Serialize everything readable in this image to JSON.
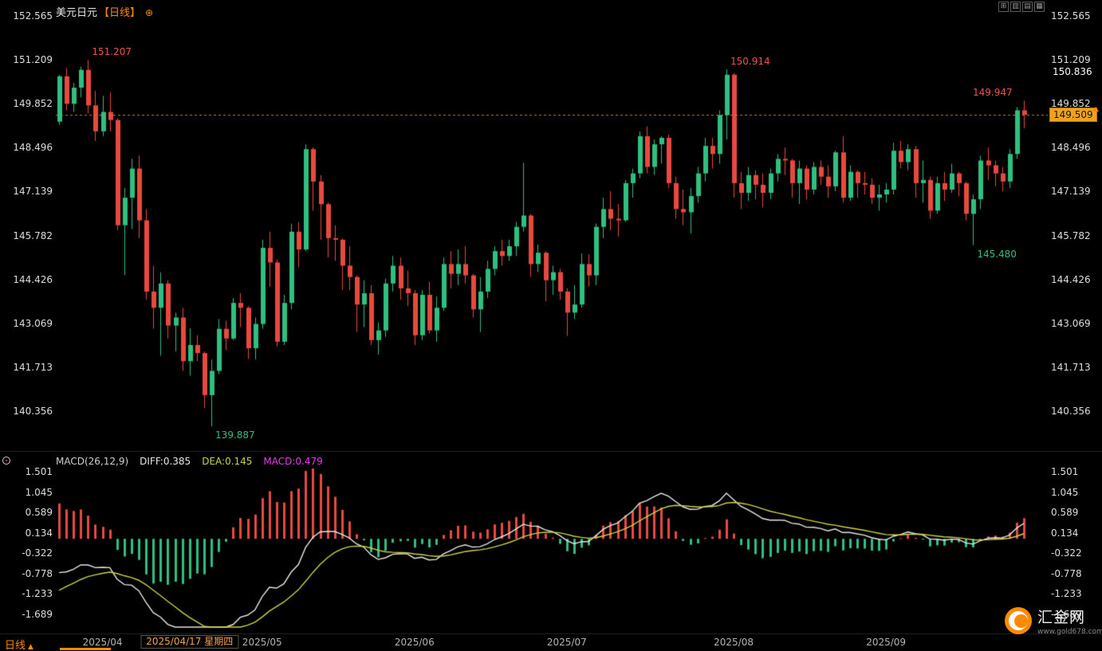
{
  "header": {
    "symbol": "美元日元",
    "period_tag": "【日线】",
    "settings_icon": "⊕",
    "toolbar": {
      "grid_layout_icon": "⊞",
      "candlestick_icon": "▥",
      "bar_chart_icon": "▤",
      "line_chart_icon": "▦"
    }
  },
  "price_axis": {
    "max": 152.565,
    "min": 140.356,
    "labels": [
      "152.565",
      "151.209",
      "149.852",
      "148.496",
      "147.139",
      "145.782",
      "144.426",
      "143.069",
      "141.713",
      "140.356"
    ]
  },
  "right_axis": {
    "session_high_label": "150.836",
    "last_price_label": "149.509"
  },
  "last_price": 149.509,
  "annotations": [
    {
      "text": "151.207",
      "date": "03/28",
      "vpos": "above",
      "side": "right",
      "color": "#f0524a"
    },
    {
      "text": "150.914",
      "date": "07/31",
      "vpos": "above",
      "side": "right",
      "color": "#f0524a"
    },
    {
      "text": "149.947",
      "date": "09/26",
      "vpos": "above",
      "side": "left",
      "color": "#f0524a"
    },
    {
      "text": "145.480",
      "date": "09/17",
      "vpos": "below",
      "side": "right",
      "color": "#2fbf80"
    },
    {
      "text": "139.887",
      "date": "04/22",
      "vpos": "below",
      "side": "right",
      "color": "#2fbf80"
    }
  ],
  "macd": {
    "title": "MACD(26,12,9)",
    "diff_label": "DIFF:0.385",
    "dea_label": "DEA:0.145",
    "macd_label": "MACD:0.479",
    "diff": 0.385,
    "dea": 0.145,
    "macd": 0.479,
    "max": 1.501,
    "min": -1.689,
    "labels": [
      "1.501",
      "1.045",
      "0.589",
      "0.134",
      "-0.322",
      "-0.778",
      "-1.233",
      "-1.689"
    ]
  },
  "time_axis": {
    "months": [
      {
        "label": "2025/04",
        "month": "04"
      },
      {
        "label": "2025/05",
        "month": "05"
      },
      {
        "label": "2025/06",
        "month": "06"
      },
      {
        "label": "2025/07",
        "month": "07"
      },
      {
        "label": "2025/08",
        "month": "08"
      },
      {
        "label": "2025/09",
        "month": "09"
      }
    ],
    "crosshair_date": "2025/04/17 星期四",
    "crosshair_anchor": "04/17"
  },
  "footer": {
    "period_label": "日线",
    "period_arrow": "▲",
    "logo_text": "汇金网",
    "logo_site": "www.gold678.com"
  },
  "colors": {
    "up": "#2fbf80",
    "down": "#e8493f",
    "accent": "#ff8a00",
    "diff_line": "#e6e6e6",
    "dea_line": "#cdd243",
    "macd_value": "#e53ae5",
    "last_price_line": "#c8791e"
  },
  "chart_data": {
    "type": "candlestick",
    "title": "美元日元 日线 (USD/JPY Daily)",
    "ylabel": "Price",
    "ylim": [
      140.356,
      152.565
    ],
    "year": 2025,
    "marked_points": {
      "high_start": 151.207,
      "low_april": 139.887,
      "high_august": 150.914,
      "low_september": 145.48,
      "recent_high": 149.947,
      "last_close": 149.509
    },
    "indicator": {
      "name": "MACD",
      "params": [
        26,
        12,
        9
      ],
      "diff": 0.385,
      "dea": 0.145,
      "macd": 0.479,
      "axis_range": [
        -1.689,
        1.501
      ]
    },
    "ohlc_format": [
      "date",
      "open",
      "high",
      "low",
      "close"
    ],
    "candles": [
      [
        "03/24",
        149.3,
        150.75,
        149.2,
        150.7
      ],
      [
        "03/25",
        150.7,
        150.95,
        149.65,
        149.85
      ],
      [
        "03/26",
        149.85,
        150.5,
        149.6,
        150.35
      ],
      [
        "03/27",
        150.35,
        151.0,
        150.05,
        150.9
      ],
      [
        "03/28",
        150.9,
        151.207,
        149.55,
        149.8
      ],
      [
        "03/31",
        149.8,
        150.25,
        148.7,
        149.0
      ],
      [
        "04/01",
        149.0,
        150.1,
        148.85,
        149.6
      ],
      [
        "04/02",
        149.6,
        150.2,
        149.0,
        149.35
      ],
      [
        "04/03",
        149.35,
        149.4,
        145.95,
        146.1
      ],
      [
        "04/04",
        146.1,
        147.25,
        144.56,
        146.95
      ],
      [
        "04/07",
        146.95,
        148.15,
        145.98,
        147.85
      ],
      [
        "04/08",
        147.85,
        148.25,
        145.7,
        146.25
      ],
      [
        "04/09",
        146.25,
        146.6,
        143.8,
        144.05
      ],
      [
        "04/10",
        144.05,
        144.85,
        142.9,
        143.55
      ],
      [
        "04/11",
        143.55,
        144.65,
        142.07,
        144.3
      ],
      [
        "04/14",
        144.3,
        144.4,
        142.6,
        143.0
      ],
      [
        "04/15",
        143.0,
        143.4,
        142.2,
        143.25
      ],
      [
        "04/16",
        143.25,
        143.55,
        141.61,
        141.9
      ],
      [
        "04/17",
        141.9,
        142.92,
        141.45,
        142.4
      ],
      [
        "04/18",
        142.4,
        142.7,
        141.9,
        142.15
      ],
      [
        "04/21",
        142.15,
        142.2,
        140.45,
        140.85
      ],
      [
        "04/22",
        140.85,
        141.95,
        139.887,
        141.6
      ],
      [
        "04/23",
        141.6,
        143.2,
        141.5,
        142.9
      ],
      [
        "04/24",
        142.9,
        143.15,
        142.25,
        142.6
      ],
      [
        "04/25",
        142.6,
        143.85,
        142.55,
        143.7
      ],
      [
        "04/28",
        143.7,
        144.0,
        142.95,
        143.55
      ],
      [
        "04/29",
        143.55,
        143.6,
        141.97,
        142.3
      ],
      [
        "04/30",
        142.3,
        143.25,
        141.95,
        143.05
      ],
      [
        "05/01",
        143.05,
        145.65,
        142.9,
        145.4
      ],
      [
        "05/02",
        145.4,
        145.9,
        144.2,
        144.95
      ],
      [
        "05/06",
        144.95,
        145.05,
        142.35,
        142.5
      ],
      [
        "05/07",
        142.5,
        143.95,
        142.4,
        143.7
      ],
      [
        "05/08",
        143.7,
        146.15,
        143.5,
        145.9
      ],
      [
        "05/09",
        145.9,
        146.2,
        144.8,
        145.35
      ],
      [
        "05/12",
        145.35,
        148.6,
        145.3,
        148.45
      ],
      [
        "05/13",
        148.45,
        148.5,
        146.55,
        147.45
      ],
      [
        "05/14",
        147.45,
        147.65,
        145.65,
        146.75
      ],
      [
        "05/15",
        146.75,
        146.8,
        145.1,
        145.7
      ],
      [
        "05/16",
        145.7,
        146.1,
        145.0,
        145.65
      ],
      [
        "05/19",
        145.65,
        145.7,
        144.1,
        144.85
      ],
      [
        "05/20",
        144.85,
        145.45,
        144.1,
        144.5
      ],
      [
        "05/21",
        144.5,
        144.55,
        142.8,
        143.65
      ],
      [
        "05/22",
        143.65,
        144.4,
        142.95,
        144.0
      ],
      [
        "05/23",
        144.0,
        144.25,
        142.4,
        142.55
      ],
      [
        "05/26",
        142.55,
        143.1,
        142.1,
        142.85
      ],
      [
        "05/27",
        142.85,
        144.45,
        142.65,
        144.3
      ],
      [
        "05/28",
        144.3,
        145.15,
        144.05,
        144.85
      ],
      [
        "05/29",
        144.85,
        145.1,
        143.8,
        144.15
      ],
      [
        "05/30",
        144.15,
        144.7,
        143.6,
        144.0
      ],
      [
        "06/02",
        144.0,
        144.1,
        142.4,
        142.7
      ],
      [
        "06/03",
        142.7,
        144.1,
        142.55,
        143.95
      ],
      [
        "06/04",
        143.95,
        144.35,
        142.75,
        142.85
      ],
      [
        "06/05",
        142.85,
        143.9,
        142.5,
        143.55
      ],
      [
        "06/06",
        143.55,
        145.1,
        143.45,
        144.9
      ],
      [
        "06/09",
        144.9,
        145.3,
        144.15,
        144.6
      ],
      [
        "06/10",
        144.6,
        145.35,
        144.25,
        144.9
      ],
      [
        "06/11",
        144.9,
        145.45,
        144.3,
        144.55
      ],
      [
        "06/12",
        144.55,
        144.6,
        143.25,
        143.5
      ],
      [
        "06/13",
        143.5,
        144.5,
        142.8,
        144.05
      ],
      [
        "06/16",
        144.05,
        145.0,
        143.85,
        144.75
      ],
      [
        "06/17",
        144.75,
        145.45,
        144.55,
        145.3
      ],
      [
        "06/18",
        145.3,
        145.65,
        144.85,
        145.15
      ],
      [
        "06/19",
        145.15,
        145.65,
        145.0,
        145.45
      ],
      [
        "06/20",
        145.45,
        146.2,
        145.15,
        146.05
      ],
      [
        "06/23",
        146.05,
        148.03,
        145.9,
        146.4
      ],
      [
        "06/24",
        146.4,
        146.45,
        144.5,
        144.9
      ],
      [
        "06/25",
        144.9,
        145.5,
        144.65,
        145.25
      ],
      [
        "06/26",
        145.25,
        145.3,
        143.75,
        144.4
      ],
      [
        "06/27",
        144.4,
        144.85,
        143.95,
        144.65
      ],
      [
        "06/30",
        144.65,
        144.75,
        143.8,
        144.05
      ],
      [
        "07/01",
        144.05,
        144.15,
        142.68,
        143.4
      ],
      [
        "07/02",
        143.4,
        144.25,
        143.2,
        143.65
      ],
      [
        "07/03",
        143.65,
        145.23,
        143.55,
        144.9
      ],
      [
        "07/04",
        144.9,
        145.2,
        144.2,
        144.55
      ],
      [
        "07/07",
        144.55,
        146.15,
        144.25,
        146.05
      ],
      [
        "07/08",
        146.05,
        146.95,
        145.7,
        146.6
      ],
      [
        "07/09",
        146.6,
        147.15,
        145.95,
        146.3
      ],
      [
        "07/10",
        146.3,
        146.75,
        145.75,
        146.25
      ],
      [
        "07/11",
        146.25,
        147.5,
        146.2,
        147.4
      ],
      [
        "07/14",
        147.4,
        147.85,
        146.95,
        147.7
      ],
      [
        "07/15",
        147.7,
        149.0,
        147.55,
        148.85
      ],
      [
        "07/16",
        148.85,
        149.15,
        147.7,
        147.9
      ],
      [
        "07/17",
        147.9,
        148.75,
        147.65,
        148.6
      ],
      [
        "07/18",
        148.6,
        148.85,
        148.0,
        148.8
      ],
      [
        "07/21",
        148.8,
        148.9,
        147.25,
        147.4
      ],
      [
        "07/22",
        147.4,
        147.6,
        146.3,
        146.6
      ],
      [
        "07/23",
        146.6,
        147.2,
        146.1,
        146.5
      ],
      [
        "07/24",
        146.5,
        147.25,
        145.85,
        147.0
      ],
      [
        "07/25",
        147.0,
        147.9,
        146.8,
        147.7
      ],
      [
        "07/28",
        147.7,
        148.8,
        147.45,
        148.55
      ],
      [
        "07/29",
        148.55,
        148.8,
        147.85,
        148.3
      ],
      [
        "07/30",
        148.3,
        149.65,
        148.0,
        149.5
      ],
      [
        "07/31",
        149.5,
        150.914,
        148.75,
        150.75
      ],
      [
        "08/01",
        150.75,
        150.8,
        146.95,
        147.4
      ],
      [
        "08/04",
        147.4,
        147.75,
        146.6,
        147.1
      ],
      [
        "08/05",
        147.1,
        147.9,
        146.85,
        147.65
      ],
      [
        "08/06",
        147.65,
        147.8,
        146.9,
        147.35
      ],
      [
        "08/07",
        147.35,
        147.7,
        146.65,
        147.1
      ],
      [
        "08/08",
        147.1,
        147.85,
        146.9,
        147.7
      ],
      [
        "08/11",
        147.7,
        148.3,
        147.45,
        148.15
      ],
      [
        "08/12",
        148.15,
        148.5,
        147.65,
        148.1
      ],
      [
        "08/13",
        148.1,
        148.15,
        146.95,
        147.4
      ],
      [
        "08/14",
        147.4,
        148.1,
        146.75,
        147.85
      ],
      [
        "08/15",
        147.85,
        147.95,
        146.9,
        147.2
      ],
      [
        "08/18",
        147.2,
        148.05,
        147.05,
        147.9
      ],
      [
        "08/19",
        147.9,
        148.1,
        147.35,
        147.6
      ],
      [
        "08/20",
        147.6,
        147.95,
        146.95,
        147.3
      ],
      [
        "08/21",
        147.3,
        148.4,
        147.15,
        148.35
      ],
      [
        "08/22",
        148.35,
        148.85,
        146.8,
        146.95
      ],
      [
        "08/25",
        146.95,
        147.95,
        146.85,
        147.75
      ],
      [
        "08/26",
        147.75,
        147.8,
        146.95,
        147.4
      ],
      [
        "08/27",
        147.4,
        147.75,
        147.05,
        147.35
      ],
      [
        "08/28",
        147.35,
        147.55,
        146.75,
        146.95
      ],
      [
        "08/29",
        146.95,
        147.35,
        146.55,
        147.05
      ],
      [
        "09/01",
        147.05,
        147.4,
        146.8,
        147.2
      ],
      [
        "09/02",
        147.2,
        148.65,
        147.05,
        148.4
      ],
      [
        "09/03",
        148.4,
        148.7,
        147.85,
        148.05
      ],
      [
        "09/04",
        148.05,
        148.6,
        147.8,
        148.45
      ],
      [
        "09/05",
        148.45,
        148.55,
        146.95,
        147.4
      ],
      [
        "09/08",
        147.4,
        148.1,
        146.8,
        147.5
      ],
      [
        "09/09",
        147.5,
        147.6,
        146.3,
        146.55
      ],
      [
        "09/10",
        146.55,
        147.6,
        146.45,
        147.4
      ],
      [
        "09/11",
        147.4,
        147.75,
        146.85,
        147.2
      ],
      [
        "09/12",
        147.2,
        148.0,
        147.1,
        147.7
      ],
      [
        "09/15",
        147.7,
        147.75,
        147.0,
        147.4
      ],
      [
        "09/16",
        147.4,
        147.45,
        146.25,
        146.45
      ],
      [
        "09/17",
        146.45,
        147.05,
        145.48,
        146.9
      ],
      [
        "09/18",
        146.9,
        148.25,
        146.6,
        148.1
      ],
      [
        "09/19",
        148.1,
        148.5,
        147.5,
        147.95
      ],
      [
        "09/22",
        147.95,
        148.1,
        147.3,
        147.7
      ],
      [
        "09/23",
        147.7,
        147.9,
        147.15,
        147.45
      ],
      [
        "09/24",
        147.45,
        148.45,
        147.25,
        148.3
      ],
      [
        "09/25",
        148.3,
        149.75,
        148.15,
        149.65
      ],
      [
        "09/26",
        149.65,
        149.947,
        149.1,
        149.509
      ]
    ]
  }
}
